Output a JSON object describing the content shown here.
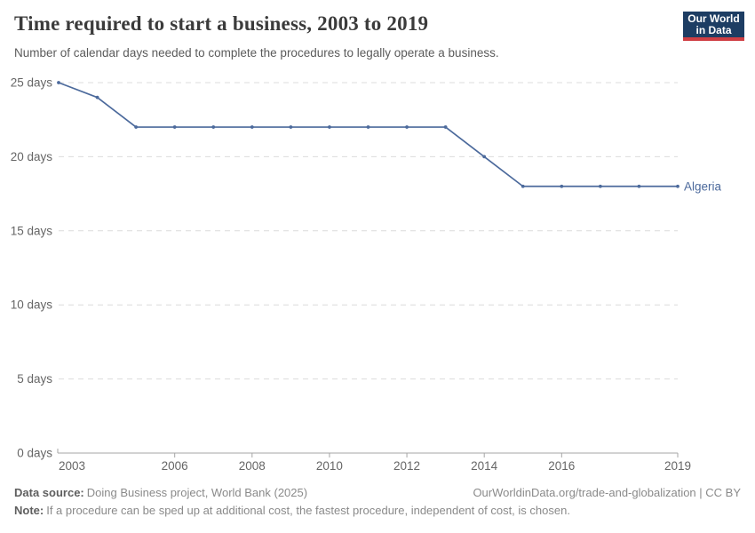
{
  "header": {
    "title": "Time required to start a business, 2003 to 2019",
    "subtitle": "Number of calendar days needed to complete the procedures to legally operate a business.",
    "logo": {
      "line1": "Our World",
      "line2": "in Data"
    }
  },
  "chart_data": {
    "type": "line",
    "title": "Time required to start a business, 2003 to 2019",
    "xlabel": "",
    "ylabel": "days",
    "xlim": [
      2003,
      2019
    ],
    "ylim": [
      0,
      25
    ],
    "x_ticks": [
      2003,
      2006,
      2008,
      2010,
      2012,
      2014,
      2016,
      2019
    ],
    "y_ticks": [
      0,
      5,
      10,
      15,
      20,
      25
    ],
    "y_tick_suffix": " days",
    "grid": "horizontal-dashed",
    "legend_position": "end-of-line-label",
    "series": [
      {
        "name": "Algeria",
        "color": "#4c6a9c",
        "x": [
          2003,
          2004,
          2005,
          2006,
          2007,
          2008,
          2009,
          2010,
          2011,
          2012,
          2013,
          2014,
          2015,
          2016,
          2017,
          2018,
          2019
        ],
        "values": [
          25,
          24,
          22,
          22,
          22,
          22,
          22,
          22,
          22,
          22,
          22,
          20,
          18,
          18,
          18,
          18,
          18
        ]
      }
    ]
  },
  "footer": {
    "data_source_label": "Data source:",
    "data_source_text": "Doing Business project, World Bank (2025)",
    "attribution": "OurWorldinData.org/trade-and-globalization | CC BY",
    "note_label": "Note:",
    "note_text": "If a procedure can be sped up at additional cost, the fastest procedure, independent of cost, is chosen."
  },
  "colors": {
    "series_line": "#4c6a9c",
    "logo_bg": "#1d3d63",
    "logo_accent": "#cf3e43",
    "grid": "#dcdcdc",
    "axis": "#a5a5a5",
    "tick_label": "#666666",
    "title": "#3b3b3b",
    "subtitle": "#5b5b5b"
  }
}
